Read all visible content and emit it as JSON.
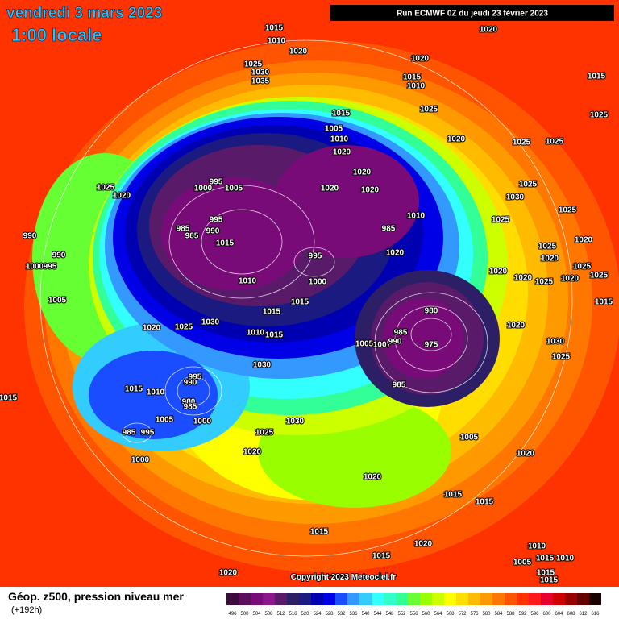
{
  "header": {
    "date": "vendredi 3 mars 2023",
    "time": "1:00 locale",
    "run": "Run ECMWF 0Z du jeudi 23 février 2023"
  },
  "footer": {
    "title": "Géop. z500, pression niveau mer",
    "lead": "(+192h)",
    "copyright": "Copyright 2023 Meteociel.fr"
  },
  "legend": {
    "ticks": [
      496,
      500,
      504,
      508,
      512,
      516,
      520,
      524,
      528,
      532,
      536,
      540,
      544,
      548,
      552,
      556,
      560,
      564,
      568,
      572,
      576,
      580,
      584,
      588,
      592,
      596,
      600,
      604,
      608,
      612,
      616
    ],
    "colors": [
      "#3d0a3d",
      "#5c0d5c",
      "#780b78",
      "#8c178c",
      "#5a1a6a",
      "#2d1f66",
      "#1a1a80",
      "#0000b3",
      "#0000e6",
      "#1a4dff",
      "#3399ff",
      "#33ccff",
      "#33ffff",
      "#33ffcc",
      "#33ff99",
      "#66ff33",
      "#99ff00",
      "#ccff00",
      "#ffff00",
      "#ffdd00",
      "#ffbb00",
      "#ff9900",
      "#ff7700",
      "#ff5500",
      "#ff3300",
      "#ff1a1a",
      "#e6002e",
      "#cc0000",
      "#990000",
      "#660000",
      "#1a0000"
    ]
  },
  "pressure_labels": [
    1015,
    1010,
    1020,
    1020,
    1025,
    1030,
    1035,
    1020,
    1015,
    1010,
    1015,
    1025,
    1025,
    1015,
    1005,
    1010,
    1020,
    1025,
    1025,
    1020,
    1020,
    995,
    1000,
    1005,
    1025,
    1020,
    1020,
    1020,
    1025,
    1030,
    1025,
    995,
    1010,
    1025,
    985,
    990,
    985,
    1015,
    985,
    990,
    1020,
    1025,
    1020,
    990,
    995,
    1020,
    1025,
    1000,
    995,
    1020,
    1020,
    1025,
    1020,
    1025,
    1000,
    1010,
    1005,
    1015,
    1015,
    1015,
    980,
    1020,
    1025,
    1030,
    1010,
    1015,
    1020,
    985,
    975,
    1005,
    1007,
    990,
    1030,
    1015,
    1025,
    1030,
    995,
    985,
    1015,
    1010,
    990,
    980,
    985,
    1005,
    1000,
    1030,
    1025,
    985,
    995,
    1005,
    1020,
    1000,
    1020,
    1020,
    1015,
    1015,
    1015,
    1020,
    1010,
    1015,
    1015,
    1020,
    1010,
    1005,
    1015,
    1015
  ]
}
